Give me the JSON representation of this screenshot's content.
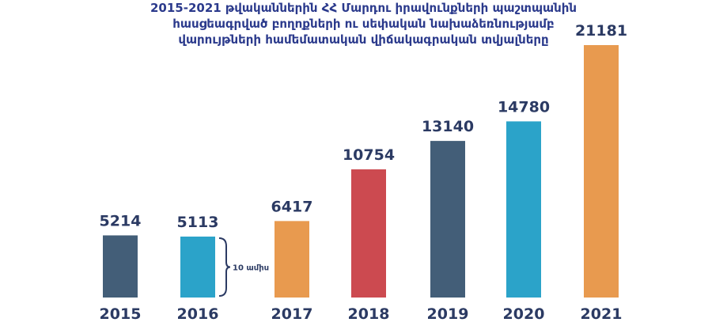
{
  "chart_data": {
    "type": "bar",
    "title_lines": [
      "2015-2021 թվականներին ՀՀ Մարդու իրավունքների պաշտպանին",
      "հասցեագրված բողոքների ու սեփական նախաձեռնությամբ",
      "վարույթների համեմատական վիճակագրական տվյալները"
    ],
    "categories": [
      "2015",
      "2016",
      "2017",
      "2018",
      "2019",
      "2020",
      "2021"
    ],
    "values": [
      5214,
      5113,
      6417,
      10754,
      13140,
      14780,
      21181
    ],
    "colors": [
      "#435e78",
      "#2ba3c9",
      "#e89a4f",
      "#cc4a50",
      "#435e78",
      "#2ba3c9",
      "#e89a4f"
    ],
    "ylim": [
      0,
      21181
    ],
    "grid": false,
    "legend": "none",
    "annotation": {
      "text": "10 ամիս",
      "category": "2016"
    }
  }
}
